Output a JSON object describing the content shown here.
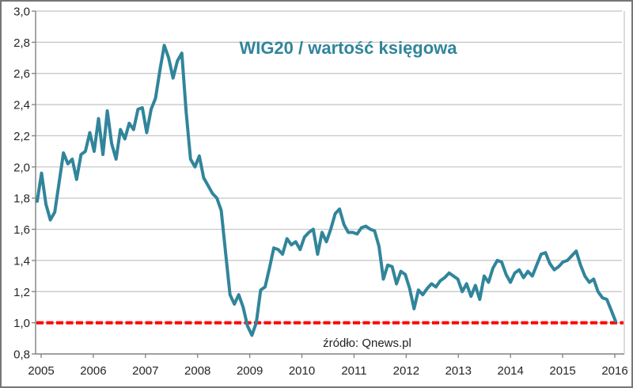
{
  "chart_data": {
    "type": "line",
    "title": "WIG20 / wartość księgowa",
    "source": "źródło: Qnews.pl",
    "x_tick_labels": [
      "2005",
      "2006",
      "2007",
      "2008",
      "2009",
      "2010",
      "2011",
      "2012",
      "2013",
      "2014",
      "2015",
      "2016"
    ],
    "y_tick_labels": [
      "3,0",
      "2,8",
      "2,6",
      "2,4",
      "2,2",
      "2,0",
      "1,8",
      "1,6",
      "1,4",
      "1,2",
      "1,0",
      "0,8"
    ],
    "ylim": [
      0.8,
      3.0
    ],
    "y_step": 0.2,
    "grid": true,
    "legend_position": "none",
    "x_range": [
      "2005-01",
      "2016-01"
    ],
    "reference_line": {
      "value": 1.0,
      "color": "#FF0000",
      "style": "dashed",
      "thickness": 4
    },
    "series": [
      {
        "name": "WIG20 / wartość księgowa",
        "color": "#31859B",
        "frequency": "monthly",
        "start": "2005-01",
        "values": [
          1.78,
          1.96,
          1.76,
          1.66,
          1.71,
          1.9,
          2.09,
          2.02,
          2.05,
          1.92,
          2.08,
          2.1,
          2.22,
          2.1,
          2.31,
          2.08,
          2.36,
          2.15,
          2.05,
          2.24,
          2.18,
          2.28,
          2.24,
          2.37,
          2.38,
          2.22,
          2.37,
          2.44,
          2.62,
          2.78,
          2.7,
          2.57,
          2.68,
          2.73,
          2.35,
          2.05,
          2.0,
          2.07,
          1.93,
          1.88,
          1.83,
          1.8,
          1.72,
          1.45,
          1.18,
          1.12,
          1.18,
          1.1,
          0.98,
          0.92,
          1.0,
          1.21,
          1.23,
          1.35,
          1.48,
          1.47,
          1.44,
          1.54,
          1.5,
          1.52,
          1.47,
          1.55,
          1.58,
          1.6,
          1.44,
          1.58,
          1.52,
          1.6,
          1.7,
          1.73,
          1.63,
          1.58,
          1.58,
          1.57,
          1.61,
          1.62,
          1.6,
          1.59,
          1.49,
          1.28,
          1.37,
          1.36,
          1.25,
          1.33,
          1.31,
          1.22,
          1.09,
          1.21,
          1.18,
          1.22,
          1.25,
          1.23,
          1.27,
          1.29,
          1.32,
          1.3,
          1.28,
          1.2,
          1.25,
          1.17,
          1.24,
          1.15,
          1.3,
          1.26,
          1.35,
          1.4,
          1.39,
          1.31,
          1.26,
          1.32,
          1.34,
          1.29,
          1.33,
          1.3,
          1.37,
          1.44,
          1.45,
          1.38,
          1.34,
          1.36,
          1.39,
          1.4,
          1.43,
          1.46,
          1.37,
          1.3,
          1.26,
          1.28,
          1.2,
          1.16,
          1.15,
          1.08,
          1.01
        ]
      }
    ],
    "colors": {
      "line": "#31859B",
      "title": "#31859B",
      "grid": "#C3C3C3",
      "axis": "#808080",
      "labels": "#262626",
      "reference": "#FF0000",
      "background": "#FFFFFF",
      "frame": "#767676"
    }
  }
}
